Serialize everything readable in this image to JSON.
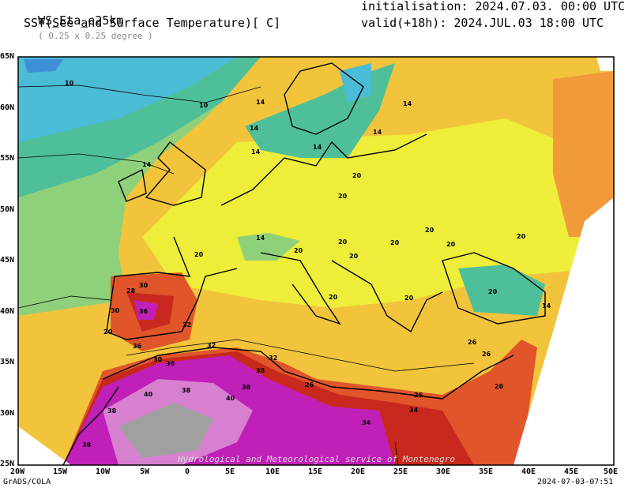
{
  "header": {
    "model": "WS_Eta_e25km",
    "resolution": "( 0.25 x 0.25 degree )",
    "field": "SST(See and Surface Temperature)[ C]",
    "init": "initialisation: 2024.07.03. 00:00 UTC",
    "valid": "valid(+18h): 2024.JUL.03 18:00 UTC"
  },
  "map": {
    "watermark": "Hydrological and Meteorological service of Montenegro",
    "lat_labels": [
      "65N",
      "60N",
      "55N",
      "50N",
      "45N",
      "40N",
      "35N",
      "30N",
      "25N"
    ],
    "lon_labels": [
      "20W",
      "15W",
      "10W",
      "5W",
      "0",
      "5E",
      "10E",
      "15E",
      "20E",
      "25E",
      "30E",
      "35E",
      "40E",
      "45E",
      "50E"
    ],
    "contour_labels": [
      "10",
      "10",
      "14",
      "14",
      "14",
      "14",
      "14",
      "14",
      "14",
      "14",
      "20",
      "20",
      "20",
      "20",
      "20",
      "20",
      "20",
      "20",
      "20",
      "20",
      "20",
      "20",
      "20",
      "20",
      "14",
      "26",
      "26",
      "26",
      "26",
      "26",
      "28",
      "30",
      "30",
      "30",
      "32",
      "32",
      "32",
      "34",
      "34",
      "36",
      "36",
      "36",
      "38",
      "38",
      "38",
      "38",
      "38",
      "40",
      "40"
    ]
  },
  "colors": {
    "cold": "#3f8fd8",
    "cool": "#4bbcd6",
    "teal": "#4fbf9a",
    "green": "#8fd07a",
    "yellow": "#eded3a",
    "gold": "#f2c43c",
    "orange": "#f09a3a",
    "darkorange": "#e0552a",
    "red": "#c8281e",
    "magenta": "#c020b8",
    "pink": "#d880d0",
    "grey": "#a0a0a0"
  },
  "footer": {
    "left": "GrADS/COLA",
    "right": "2024-07-03-07:51"
  }
}
